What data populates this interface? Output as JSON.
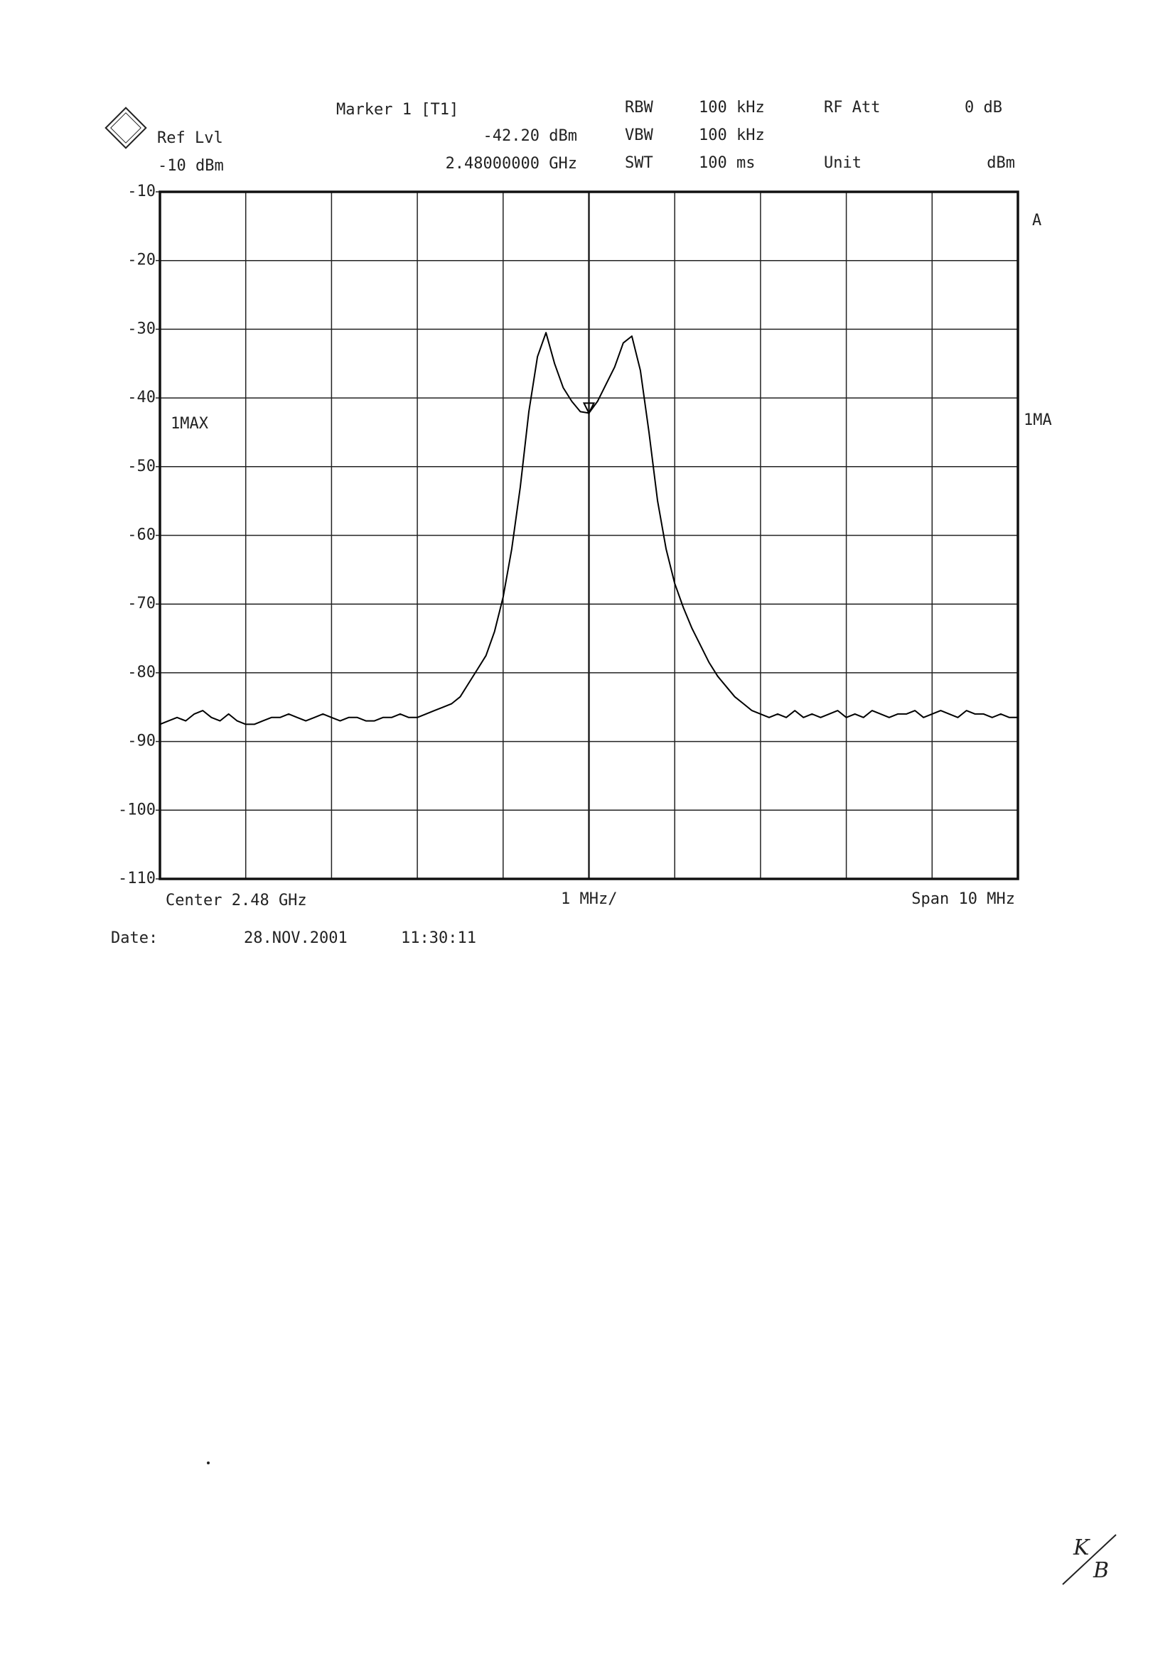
{
  "chart_data": {
    "type": "line",
    "ref_level_label": "Ref Lvl",
    "ref_level": "-10 dBm",
    "marker": {
      "label": "Marker 1 [T1]",
      "level": "-42.20 dBm",
      "frequency": "2.48000000 GHz"
    },
    "settings": [
      {
        "name": "RBW",
        "value": "100 kHz"
      },
      {
        "name": "VBW",
        "value": "100 kHz"
      },
      {
        "name": "SWT",
        "value": "100 ms"
      }
    ],
    "rf_att": {
      "name": "RF Att",
      "value": "0 dB"
    },
    "unit": {
      "name": "Unit",
      "value": "dBm"
    },
    "trace_right_label": "1MA",
    "trace_mode": "A",
    "center_label": "Center 2.48 GHz",
    "div_label": "1 MHz/",
    "span_label": "Span 10 MHz",
    "date_label": "Date:",
    "date": "28.NOV.2001",
    "time": "11:30:11",
    "handwritten_initials": [
      "K",
      "B"
    ],
    "xlim": [
      2.475,
      2.485
    ],
    "ylim": [
      -110,
      -10
    ],
    "yticks": [
      -10,
      -20,
      -30,
      -40,
      -50,
      -60,
      -70,
      -80,
      -90,
      -100,
      -110
    ],
    "grid": true,
    "x": [
      2.475,
      2.4751,
      2.4752,
      2.4753,
      2.4754,
      2.4755,
      2.4756,
      2.4757,
      2.4758,
      2.4759,
      2.476,
      2.4761,
      2.4762,
      2.4763,
      2.4764,
      2.4765,
      2.4766,
      2.4767,
      2.4768,
      2.4769,
      2.477,
      2.4771,
      2.4772,
      2.4773,
      2.4774,
      2.4775,
      2.4776,
      2.4777,
      2.4778,
      2.4779,
      2.478,
      2.4781,
      2.4782,
      2.4783,
      2.4784,
      2.4785,
      2.4786,
      2.4787,
      2.4788,
      2.4789,
      2.479,
      2.4791,
      2.4792,
      2.4793,
      2.4794,
      2.4795,
      2.4796,
      2.4797,
      2.4798,
      2.4799,
      2.48,
      2.4801,
      2.4802,
      2.4803,
      2.4804,
      2.4805,
      2.4806,
      2.4807,
      2.4808,
      2.4809,
      2.481,
      2.4811,
      2.4812,
      2.4813,
      2.4814,
      2.4815,
      2.4816,
      2.4817,
      2.4818,
      2.4819,
      2.482,
      2.4821,
      2.4822,
      2.4823,
      2.4824,
      2.4825,
      2.4826,
      2.4827,
      2.4828,
      2.4829,
      2.483,
      2.4831,
      2.4832,
      2.4833,
      2.4834,
      2.4835,
      2.4836,
      2.4837,
      2.4838,
      2.4839,
      2.484,
      2.4841,
      2.4842,
      2.4843,
      2.4844,
      2.4845,
      2.4846,
      2.4847,
      2.4848,
      2.4849,
      2.485
    ],
    "series": [
      {
        "name": "1MAX",
        "color": "#000000",
        "values": [
          -87.5,
          -87,
          -86.5,
          -87,
          -86,
          -85.5,
          -86.5,
          -87,
          -86,
          -87,
          -87.5,
          -87.5,
          -87,
          -86.5,
          -86.5,
          -86,
          -86.5,
          -87,
          -86.5,
          -86,
          -86.5,
          -87,
          -86.5,
          -86.5,
          -87,
          -87,
          -86.5,
          -86.5,
          -86,
          -86.5,
          -86.5,
          -86,
          -85.5,
          -85,
          -84.5,
          -83.5,
          -81.5,
          -79.5,
          -77.5,
          -74,
          -69,
          -62,
          -53,
          -42,
          -34,
          -30.5,
          -35,
          -38.5,
          -40.5,
          -42,
          -42.2,
          -40.5,
          -38,
          -35.5,
          -32,
          -31,
          -36,
          -45,
          -55,
          -62,
          -67,
          -70.5,
          -73.5,
          -76,
          -78.5,
          -80.5,
          -82,
          -83.5,
          -84.5,
          -85.5,
          -86,
          -86.5,
          -86,
          -86.5,
          -85.5,
          -86.5,
          -86,
          -86.5,
          -86,
          -85.5,
          -86.5,
          -86,
          -86.5,
          -85.5,
          -86,
          -86.5,
          -86,
          -86,
          -85.5,
          -86.5,
          -86,
          -85.5,
          -86,
          -86.5,
          -85.5,
          -86,
          -86,
          -86.5,
          -86,
          -86.5,
          -86.5
        ]
      }
    ]
  }
}
